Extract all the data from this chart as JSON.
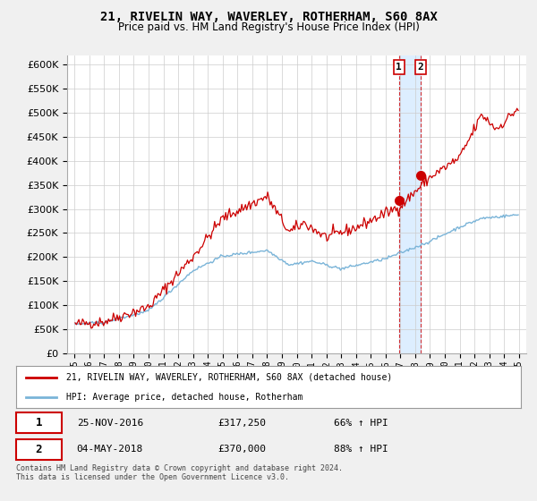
{
  "title": "21, RIVELIN WAY, WAVERLEY, ROTHERHAM, S60 8AX",
  "subtitle": "Price paid vs. HM Land Registry's House Price Index (HPI)",
  "legend_line1": "21, RIVELIN WAY, WAVERLEY, ROTHERHAM, S60 8AX (detached house)",
  "legend_line2": "HPI: Average price, detached house, Rotherham",
  "sale1_date": "25-NOV-2016",
  "sale1_price": "£317,250",
  "sale1_hpi": "66% ↑ HPI",
  "sale1_year": 2016.9,
  "sale1_value": 317250,
  "sale2_date": "04-MAY-2018",
  "sale2_price": "£370,000",
  "sale2_hpi": "88% ↑ HPI",
  "sale2_year": 2018.35,
  "sale2_value": 370000,
  "footer": "Contains HM Land Registry data © Crown copyright and database right 2024.\nThis data is licensed under the Open Government Licence v3.0.",
  "hpi_color": "#7ab4d8",
  "price_color": "#cc0000",
  "ylim_min": 0,
  "ylim_max": 620000,
  "xlim_min": 1994.5,
  "xlim_max": 2025.5,
  "background_color": "#f0f0f0",
  "plot_bg_color": "#ffffff",
  "band_color": "#ddeeff"
}
